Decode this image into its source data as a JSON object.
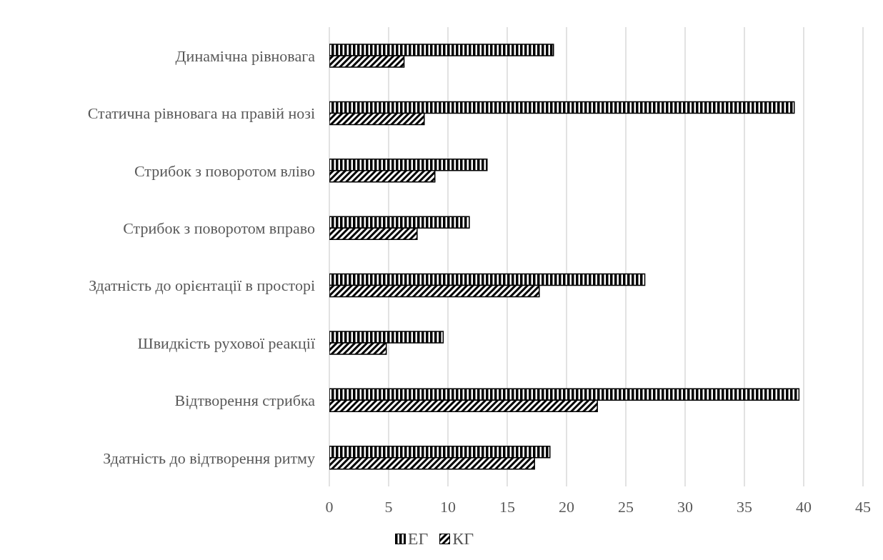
{
  "chart_data": {
    "type": "bar",
    "orientation": "horizontal",
    "categories": [
      "Динамічна рівновага",
      "Статична рівновага на правій нозі",
      "Стрибок з поворотом вліво",
      "Стрибок з поворотом вправо",
      "Здатність до орієнтації в просторі",
      "Швидкість рухової реакції",
      "Відтворення стрибка",
      "Здатність до відтворення ритму"
    ],
    "series": [
      {
        "name": "ЕГ",
        "color": "#000000",
        "values": [
          18.9,
          39.2,
          13.3,
          11.8,
          26.6,
          9.6,
          39.6,
          18.6
        ]
      },
      {
        "name": "КГ",
        "color": "#000000",
        "values": [
          6.3,
          8.0,
          8.9,
          7.4,
          17.7,
          4.8,
          22.6,
          17.3
        ]
      }
    ],
    "xlim": [
      0,
      45
    ],
    "xticks": [
      0,
      5,
      10,
      15,
      20,
      25,
      30,
      35,
      40,
      45
    ],
    "grid": "x",
    "legend": "bottom"
  }
}
